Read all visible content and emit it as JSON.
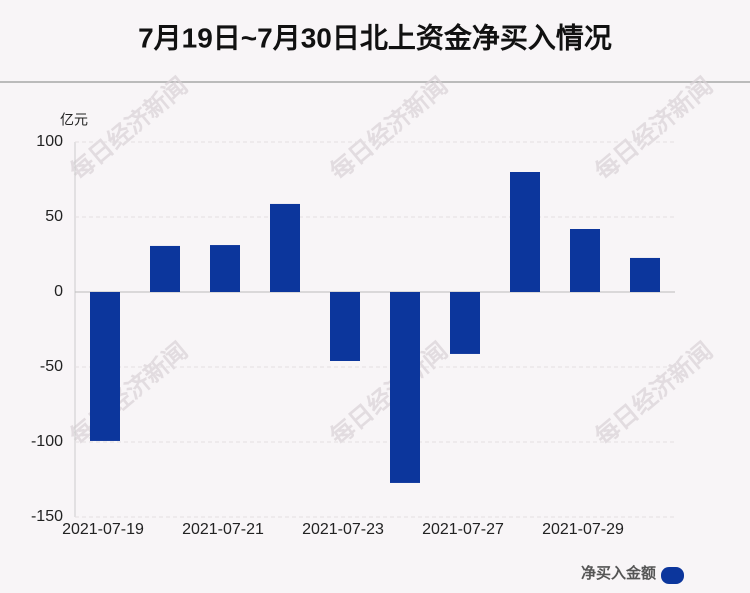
{
  "chart_data": {
    "type": "bar",
    "title": "7月19日~7月30日北上资金净买入情况",
    "y_label": "亿元",
    "watermark": "每日经济新闻",
    "categories": [
      "2021-07-19",
      null,
      "2021-07-21",
      null,
      "2021-07-23",
      null,
      "2021-07-27",
      null,
      "2021-07-29",
      null
    ],
    "series": [
      {
        "name": "净买入金额",
        "color": "#0c369c",
        "values": [
          -99.3,
          30.7,
          31.3,
          58.7,
          -46,
          -127.3,
          -41.3,
          80,
          42,
          22.7
        ]
      }
    ],
    "ylim": [
      -150,
      100
    ],
    "yticks": [
      -150,
      -100,
      -50,
      0,
      50,
      100
    ],
    "grid": true,
    "legend": "bottom-right"
  }
}
